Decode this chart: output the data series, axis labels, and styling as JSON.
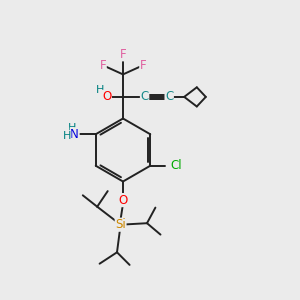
{
  "bg_color": "#ebebeb",
  "atom_colors": {
    "C": "#1a8a8a",
    "F": "#e060a0",
    "O": "#ff0000",
    "H": "#008080",
    "N": "#0000dd",
    "Cl": "#00aa00",
    "Si": "#cc8800"
  },
  "bond_color": "#222222",
  "bond_width": 1.4,
  "font_size": 8.5
}
